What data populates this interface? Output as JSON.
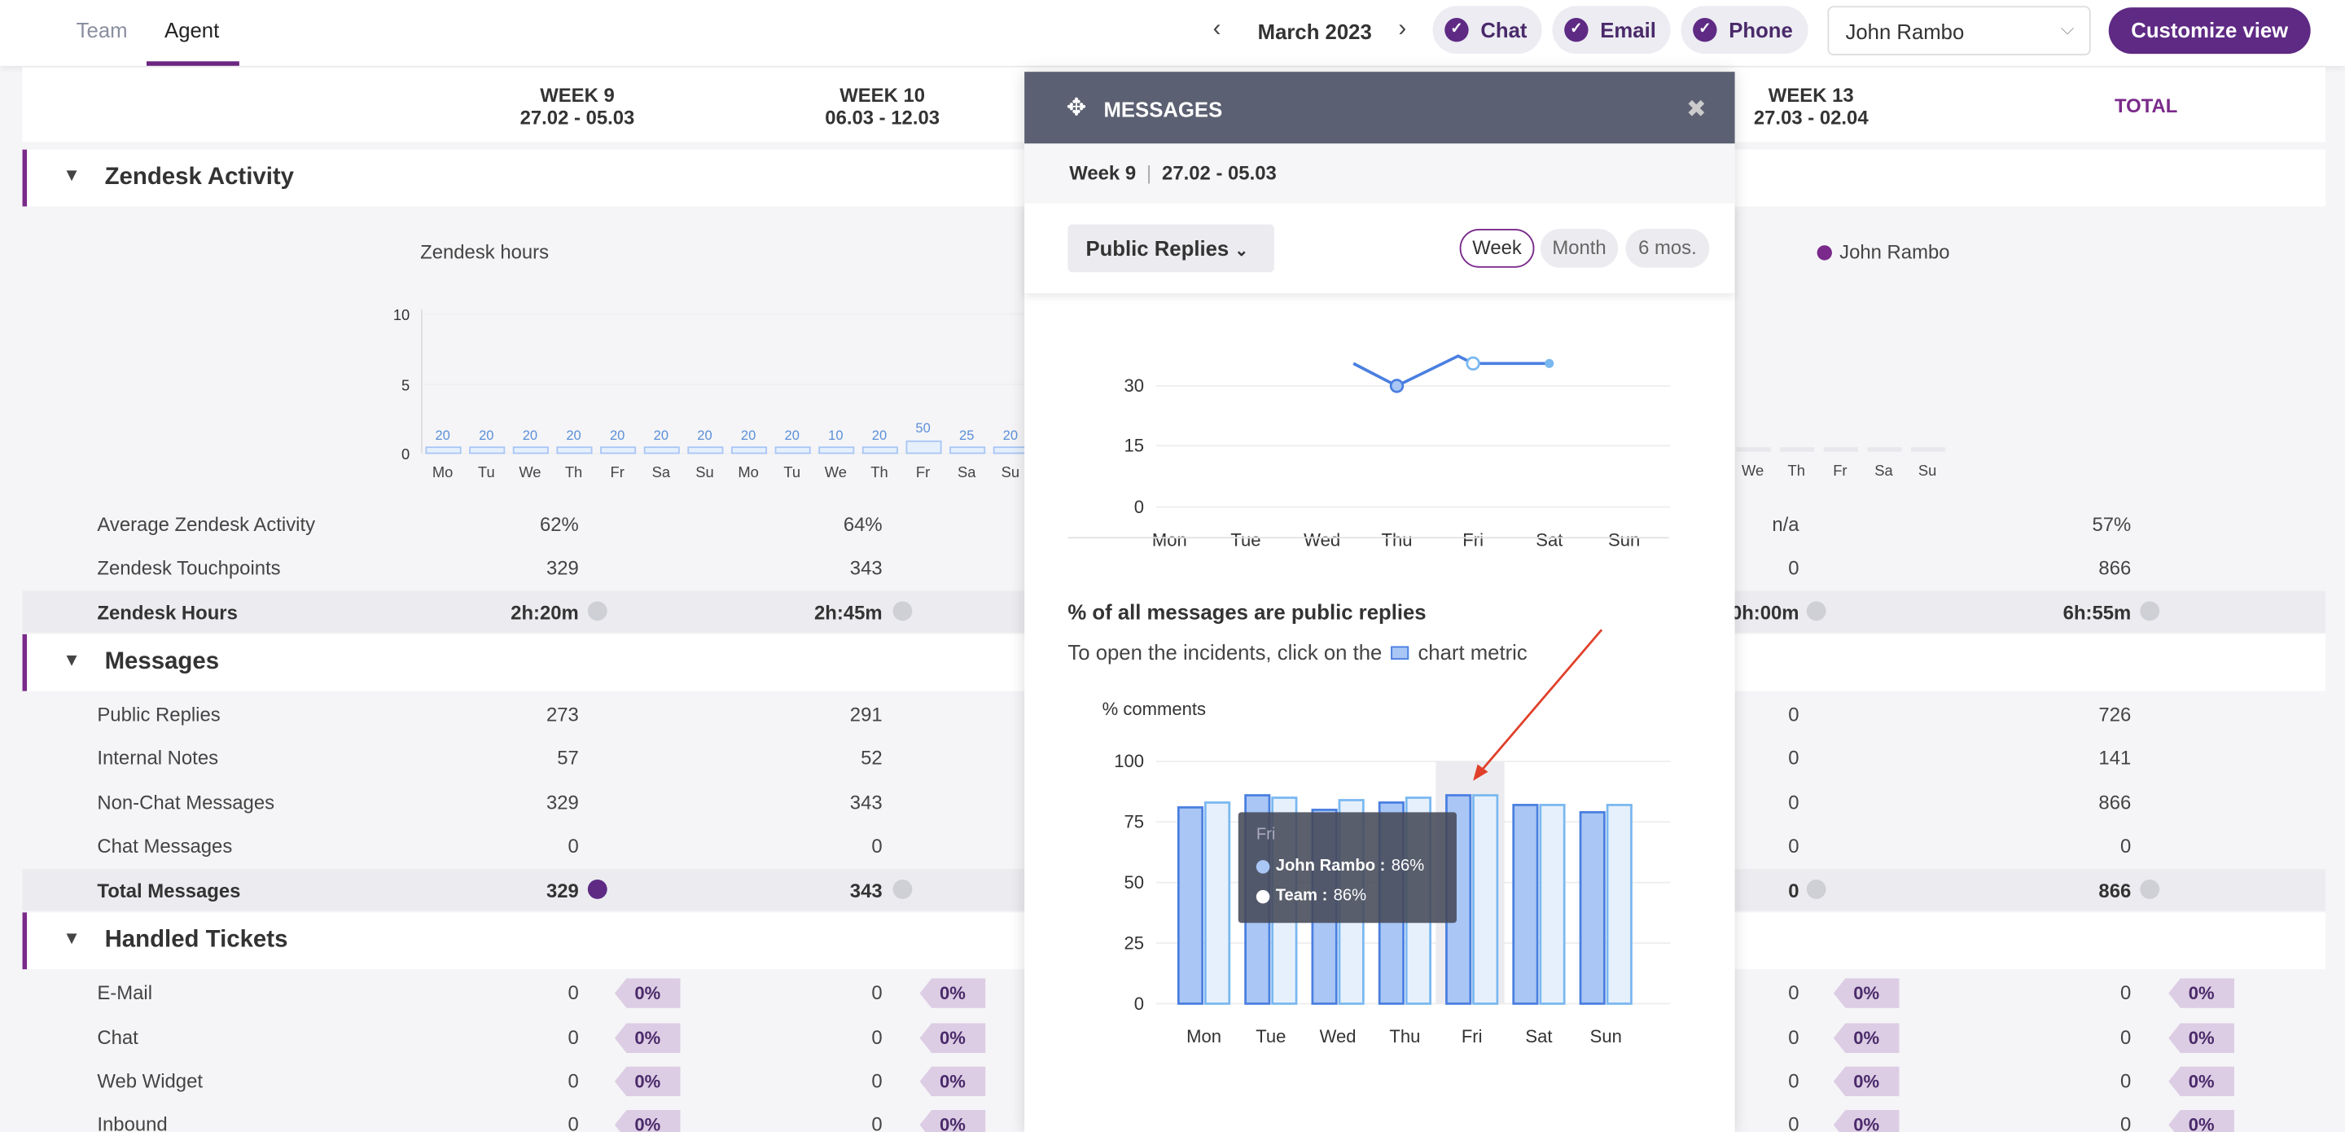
{
  "nav": {
    "tabs": [
      "Team",
      "Agent"
    ],
    "month": "March 2023",
    "channels": [
      "Chat",
      "Email",
      "Phone"
    ],
    "agent": "John Rambo",
    "customize": "Customize view"
  },
  "weeks": [
    {
      "name": "WEEK 9",
      "range": "27.02 - 05.03"
    },
    {
      "name": "WEEK 10",
      "range": "06.03 - 12.03"
    },
    {
      "name": "WEEK 13",
      "range": "27.03 - 02.04"
    }
  ],
  "total_label": "TOTAL",
  "sections": {
    "zendesk": "Zendesk Activity",
    "messages": "Messages",
    "tickets": "Handled Tickets"
  },
  "zendesk_chart": {
    "title": "Zendesk hours",
    "legend": "John Rambo",
    "yticks": [
      "10",
      "5",
      "0"
    ],
    "days": [
      "Mo",
      "Tu",
      "We",
      "Th",
      "Fr",
      "Sa",
      "Su",
      "Mo",
      "Tu",
      "We",
      "Th",
      "Fr",
      "Sa",
      "Su"
    ],
    "bar_labels": [
      "20",
      "20",
      "20",
      "20",
      "20",
      "20",
      "20",
      "20",
      "20",
      "10",
      "20",
      "50",
      "25",
      "20"
    ],
    "right_days": [
      "We",
      "Th",
      "Fr",
      "Sa",
      "Su"
    ]
  },
  "zendesk_rows": [
    {
      "label": "Average Zendesk Activity",
      "w9": "62%",
      "w10": "64%",
      "w13": "n/a",
      "total": "57%"
    },
    {
      "label": "Zendesk Touchpoints",
      "w9": "329",
      "w10": "343",
      "w13": "0",
      "total": "866"
    }
  ],
  "zendesk_total": {
    "label": "Zendesk Hours",
    "w9": "2h:20m",
    "w10": "2h:45m",
    "w13": "0h:00m",
    "total": "6h:55m"
  },
  "message_rows": [
    {
      "label": "Public Replies",
      "w9": "273",
      "w10": "291",
      "w13": "0",
      "total": "726"
    },
    {
      "label": "Internal Notes",
      "w9": "57",
      "w10": "52",
      "w13": "0",
      "total": "141"
    },
    {
      "label": "Non-Chat Messages",
      "w9": "329",
      "w10": "343",
      "w13": "0",
      "total": "866"
    },
    {
      "label": "Chat Messages",
      "w9": "0",
      "w10": "0",
      "w13": "0",
      "total": "0"
    }
  ],
  "message_total": {
    "label": "Total Messages",
    "w9": "329",
    "w10": "343",
    "w13": "0",
    "total": "866"
  },
  "ticket_rows": [
    {
      "label": "E-Mail",
      "v": "0",
      "p": "0%"
    },
    {
      "label": "Chat",
      "v": "0",
      "p": "0%"
    },
    {
      "label": "Web Widget",
      "v": "0",
      "p": "0%"
    },
    {
      "label": "Inbound",
      "v": "0",
      "p": "0%"
    }
  ],
  "panel": {
    "title": "MESSAGES",
    "week": "Week 9",
    "range": "27.02 - 05.03",
    "select": "Public Replies",
    "periods": [
      "Week",
      "Month",
      "6 mos."
    ],
    "pct_title": "% of all messages are public replies",
    "hint_pre": "To open the incidents, click on the",
    "hint_post": "chart metric",
    "ylabel": "% comments",
    "tooltip": {
      "day": "Fri",
      "agent": "John Rambo :",
      "agent_val": "86%",
      "team": "Team :",
      "team_val": "86%"
    }
  },
  "colors": {
    "purple": "#5e2a84",
    "agent_bar": "#a9c6f5",
    "team_bar": "#e6f0fc",
    "line": "#4a7fe0"
  },
  "chart_data": [
    {
      "type": "line",
      "x": [
        "Mon",
        "Tue",
        "Wed",
        "Thu",
        "Fri",
        "Sat",
        "Sun"
      ],
      "yticks": [
        0,
        15,
        30
      ],
      "series": [
        {
          "name": "John Rambo",
          "values": [
            null,
            null,
            null,
            30,
            null,
            null,
            null
          ]
        }
      ]
    },
    {
      "type": "bar",
      "categories": [
        "Mon",
        "Tue",
        "Wed",
        "Thu",
        "Fri",
        "Sat",
        "Sun"
      ],
      "ylabel": "% comments",
      "ylim": [
        0,
        100
      ],
      "yticks": [
        0,
        25,
        50,
        75,
        100
      ],
      "series": [
        {
          "name": "John Rambo",
          "values": [
            81,
            86,
            80,
            83,
            86,
            82,
            79
          ]
        },
        {
          "name": "Team",
          "values": [
            83,
            85,
            84,
            85,
            86,
            82,
            82
          ]
        }
      ]
    }
  ]
}
